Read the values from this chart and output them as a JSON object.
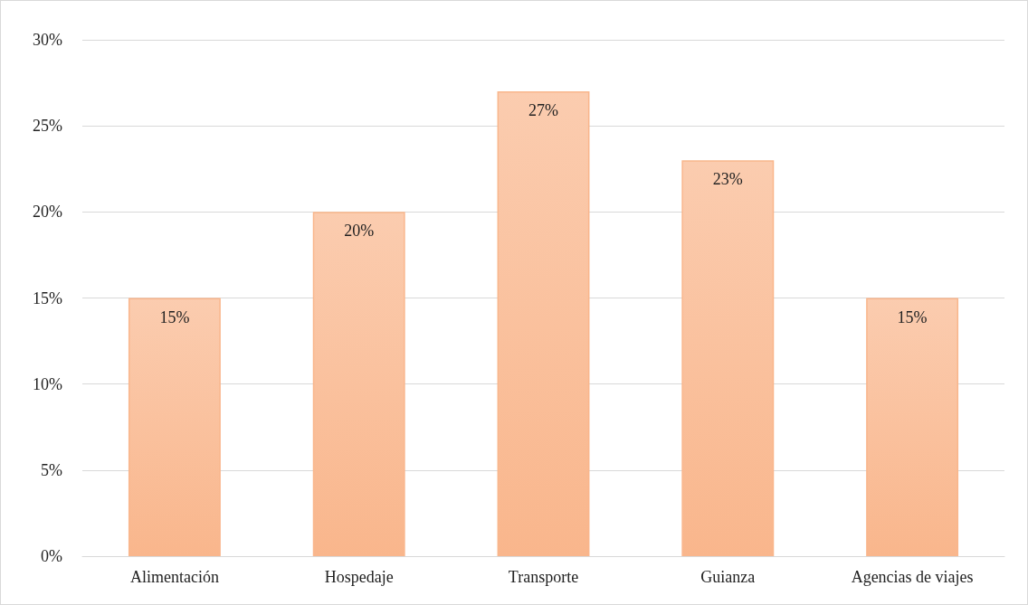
{
  "chart_data": {
    "type": "bar",
    "categories": [
      "Alimentación",
      "Hospedaje",
      "Transporte",
      "Guianza",
      "Agencias de viajes"
    ],
    "values": [
      15,
      20,
      27,
      23,
      15
    ],
    "value_labels": [
      "15%",
      "20%",
      "27%",
      "23%",
      "15%"
    ],
    "color": "#f9b68c",
    "ylim": [
      0,
      30
    ],
    "yticks": [
      {
        "value": 0,
        "label": "0%"
      },
      {
        "value": 5,
        "label": "5%"
      },
      {
        "value": 10,
        "label": "10%"
      },
      {
        "value": 15,
        "label": "15%"
      },
      {
        "value": 20,
        "label": "20%"
      },
      {
        "value": 25,
        "label": "25%"
      },
      {
        "value": 30,
        "label": "30%"
      }
    ],
    "grid": "y"
  }
}
